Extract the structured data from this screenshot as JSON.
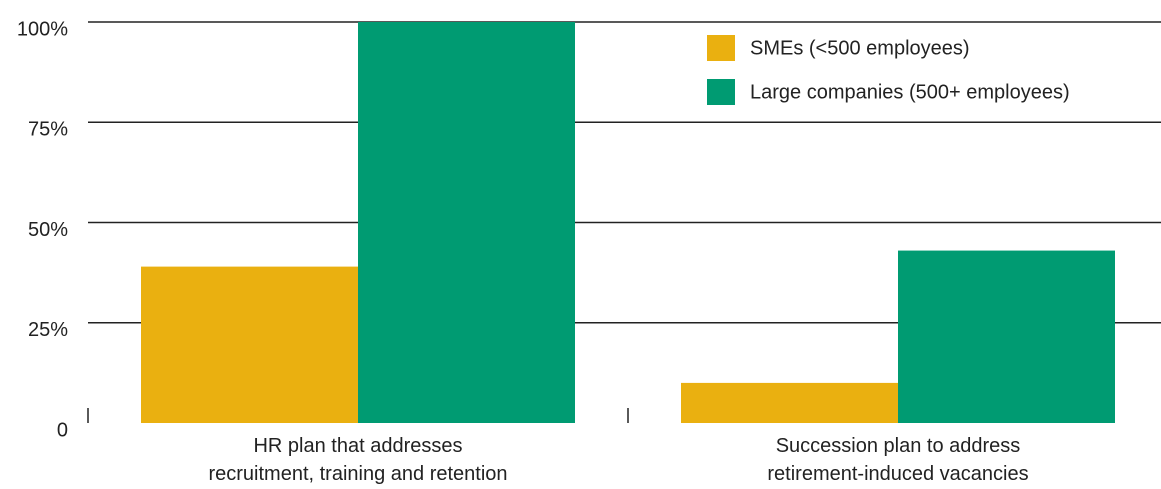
{
  "chart_data": {
    "type": "bar",
    "categories": [
      "HR plan that addresses\nrecruitment, training and retention",
      "Succession plan to address\nretirement-induced vacancies"
    ],
    "series": [
      {
        "name": "SMEs (<500 employees)",
        "color": "#eab010",
        "values": [
          39,
          10
        ]
      },
      {
        "name": "Large companies (500+ employees)",
        "color": "#009b72",
        "values": [
          100,
          43
        ]
      }
    ],
    "ylim": [
      0,
      100
    ],
    "yticks": [
      0,
      {
        "value": 25,
        "label": "25%"
      },
      {
        "value": 50,
        "label": "50%"
      },
      {
        "value": 75,
        "label": "75%"
      },
      {
        "value": 100,
        "label": "100%"
      }
    ],
    "grid": true,
    "legend": "top-right"
  }
}
